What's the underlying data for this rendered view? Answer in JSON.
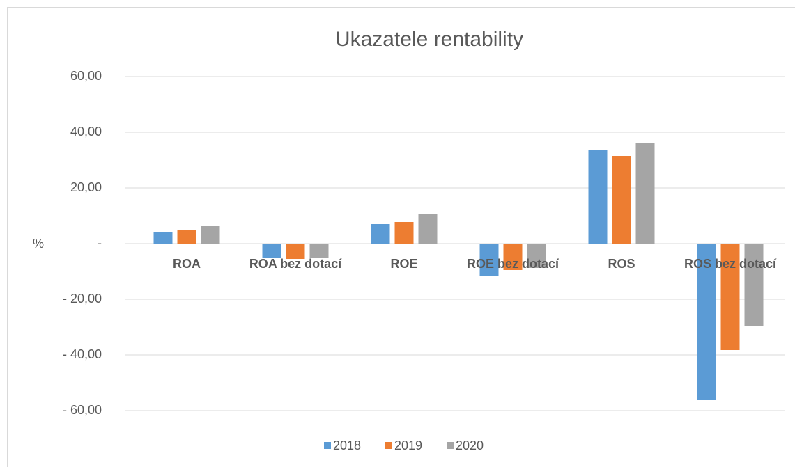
{
  "chart_data": {
    "type": "bar",
    "title": "Ukazatele rentability",
    "y_label": "%",
    "categories": [
      "ROA",
      "ROA bez dotací",
      "ROE",
      "ROE bez dotací",
      "ROS",
      "ROS bez dotací"
    ],
    "series": [
      {
        "name": "2018",
        "color": "#5b9bd5",
        "values": [
          4.25,
          -5.0,
          7.0,
          -11.75,
          33.5,
          -56.25
        ]
      },
      {
        "name": "2019",
        "color": "#ed7d31",
        "values": [
          4.75,
          -5.5,
          7.75,
          -9.5,
          31.5,
          -38.25
        ]
      },
      {
        "name": "2020",
        "color": "#a5a5a5",
        "values": [
          6.25,
          -5.0,
          10.75,
          -8.75,
          36.0,
          -29.5
        ]
      }
    ],
    "ylim": [
      -60,
      60
    ],
    "yticks": [
      {
        "value": 60,
        "label": "60,00"
      },
      {
        "value": 40,
        "label": "40,00"
      },
      {
        "value": 20,
        "label": "20,00"
      },
      {
        "value": 0,
        "label": "-"
      },
      {
        "value": -20,
        "label": "- 20,00"
      },
      {
        "value": -40,
        "label": "- 40,00"
      },
      {
        "value": -60,
        "label": "- 60,00"
      }
    ],
    "grid": true,
    "legend": "bottom"
  }
}
